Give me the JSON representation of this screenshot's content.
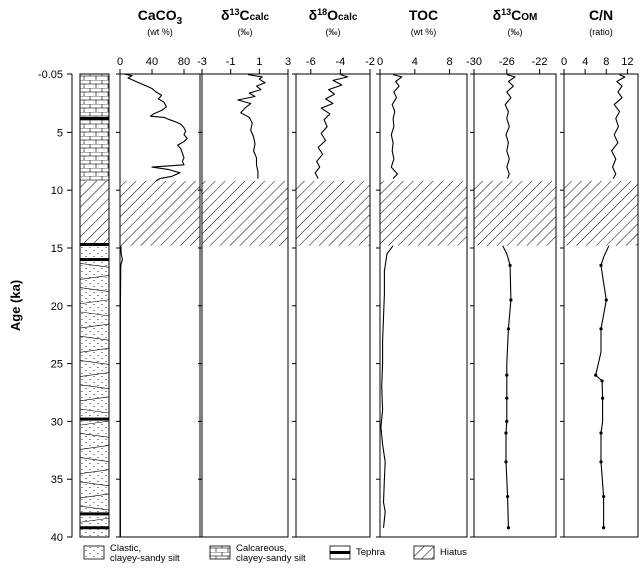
{
  "chart_data": {
    "type": "line",
    "y_axis": {
      "label": "Age (ka)",
      "range": [
        -0.05,
        40
      ],
      "ticks": [
        -0.05,
        5,
        10,
        15,
        20,
        25,
        30,
        35,
        40
      ],
      "tick_labels": [
        "-0.05",
        "5",
        "10",
        "15",
        "20",
        "25",
        "30",
        "35",
        "40"
      ],
      "inverted": true
    },
    "hiatus": [
      9.2,
      14.8
    ],
    "lithology": {
      "units": [
        {
          "type": "calcareous",
          "from": -0.05,
          "to": 9.2
        },
        {
          "type": "clastic",
          "from": 9.2,
          "to": 40
        }
      ],
      "tephra": [
        3.8,
        14.7,
        16.0,
        29.8,
        38.0,
        39.2
      ],
      "hiatus": [
        9.2,
        14.8
      ]
    },
    "panels": [
      {
        "id": "caco3",
        "title_main": "CaCO",
        "title_sub": "3",
        "title_suffix": "",
        "unit": "(wt %)",
        "xlim": [
          0,
          100
        ],
        "ticks": [
          0,
          40,
          80
        ],
        "tick_labels": [
          "0",
          "40",
          "80"
        ],
        "series": [
          {
            "segment": "upper",
            "points": [
              [
                5,
                -0.05
              ],
              [
                15,
                0.1
              ],
              [
                10,
                0.3
              ],
              [
                20,
                0.6
              ],
              [
                30,
                0.9
              ],
              [
                40,
                1.2
              ],
              [
                45,
                1.5
              ],
              [
                52,
                1.8
              ],
              [
                48,
                2.1
              ],
              [
                55,
                2.4
              ],
              [
                58,
                2.8
              ],
              [
                52,
                3.1
              ],
              [
                42,
                3.4
              ],
              [
                38,
                3.6
              ],
              [
                55,
                3.7
              ],
              [
                62,
                3.9
              ],
              [
                70,
                4.1
              ],
              [
                76,
                4.3
              ],
              [
                80,
                4.6
              ],
              [
                82,
                4.9
              ],
              [
                80,
                5.2
              ],
              [
                84,
                5.5
              ],
              [
                80,
                5.8
              ],
              [
                72,
                6.1
              ],
              [
                76,
                6.4
              ],
              [
                78,
                6.8
              ],
              [
                80,
                7.2
              ],
              [
                78,
                7.5
              ],
              [
                80,
                7.8
              ],
              [
                40,
                8.0
              ],
              [
                60,
                8.2
              ],
              [
                75,
                8.5
              ],
              [
                65,
                8.8
              ],
              [
                50,
                9.0
              ],
              [
                45,
                9.2
              ]
            ]
          },
          {
            "segment": "lower",
            "points": [
              [
                1,
                14.8
              ],
              [
                1.5,
                15.5
              ],
              [
                3,
                16.0
              ],
              [
                1,
                16.5
              ],
              [
                0.5,
                20
              ],
              [
                0.5,
                25
              ],
              [
                0.5,
                30
              ],
              [
                0.5,
                35
              ],
              [
                0.5,
                40
              ]
            ]
          }
        ]
      },
      {
        "id": "d13c_calc",
        "title_main": "δ",
        "title_sup": "13",
        "title_rest": "C",
        "title_sub": "calc",
        "unit": "(‰)",
        "xlim": [
          -3,
          3
        ],
        "ticks": [
          -3,
          -1,
          1,
          3
        ],
        "tick_labels": [
          "-3",
          "-1",
          "1",
          "3"
        ],
        "series": [
          {
            "segment": "upper",
            "points": [
              [
                0.2,
                0.0
              ],
              [
                1.2,
                0.2
              ],
              [
                1.0,
                0.4
              ],
              [
                1.4,
                0.7
              ],
              [
                0.8,
                1.0
              ],
              [
                1.1,
                1.3
              ],
              [
                0.3,
                1.6
              ],
              [
                0.7,
                1.9
              ],
              [
                -0.5,
                2.2
              ],
              [
                0.4,
                2.5
              ],
              [
                0.0,
                2.9
              ],
              [
                -0.3,
                3.3
              ],
              [
                0.3,
                3.7
              ],
              [
                0.5,
                4.2
              ],
              [
                0.4,
                4.8
              ],
              [
                0.6,
                5.4
              ],
              [
                0.7,
                6.0
              ],
              [
                0.6,
                6.6
              ],
              [
                0.8,
                7.2
              ],
              [
                0.8,
                7.8
              ],
              [
                0.9,
                8.4
              ],
              [
                0.9,
                9.0
              ]
            ]
          }
        ]
      },
      {
        "id": "d18o_calc",
        "title_main": "δ",
        "title_sup": "18",
        "title_rest": "O",
        "title_sub": "calc",
        "unit": "(‰)",
        "xlim": [
          -7,
          -2
        ],
        "ticks": [
          -6,
          -4,
          -2
        ],
        "tick_labels": [
          "-6",
          "-4",
          "-2"
        ],
        "series": [
          {
            "segment": "upper",
            "points": [
              [
                -4.0,
                0.0
              ],
              [
                -3.5,
                0.2
              ],
              [
                -4.5,
                0.5
              ],
              [
                -3.9,
                0.9
              ],
              [
                -4.8,
                1.3
              ],
              [
                -4.4,
                1.7
              ],
              [
                -5.0,
                2.1
              ],
              [
                -4.5,
                2.5
              ],
              [
                -5.3,
                2.9
              ],
              [
                -4.7,
                3.4
              ],
              [
                -5.1,
                3.9
              ],
              [
                -4.9,
                4.5
              ],
              [
                -5.3,
                5.1
              ],
              [
                -5.0,
                5.7
              ],
              [
                -5.5,
                6.3
              ],
              [
                -5.2,
                6.9
              ],
              [
                -5.6,
                7.5
              ],
              [
                -5.4,
                8.0
              ],
              [
                -5.7,
                8.5
              ],
              [
                -5.5,
                9.0
              ]
            ]
          }
        ]
      },
      {
        "id": "toc",
        "title_main": "TOC",
        "unit": "(wt %)",
        "xlim": [
          0,
          10
        ],
        "ticks": [
          0,
          4,
          8
        ],
        "tick_labels": [
          "0",
          "4",
          "8"
        ],
        "series": [
          {
            "segment": "upper",
            "points": [
              [
                1.5,
                0.0
              ],
              [
                2.5,
                0.2
              ],
              [
                1.8,
                0.6
              ],
              [
                2.2,
                1.0
              ],
              [
                1.6,
                1.5
              ],
              [
                1.9,
                2.0
              ],
              [
                1.4,
                2.6
              ],
              [
                1.7,
                3.2
              ],
              [
                1.5,
                3.8
              ],
              [
                1.6,
                4.5
              ],
              [
                1.3,
                5.2
              ],
              [
                1.5,
                5.9
              ],
              [
                1.4,
                6.6
              ],
              [
                1.6,
                7.3
              ],
              [
                1.3,
                8.0
              ],
              [
                2.0,
                8.6
              ],
              [
                1.5,
                9.0
              ]
            ]
          },
          {
            "segment": "lower",
            "points": [
              [
                1.5,
                14.8
              ],
              [
                0.8,
                15.5
              ],
              [
                0.5,
                17
              ],
              [
                0.5,
                19
              ],
              [
                0.4,
                21
              ],
              [
                0.3,
                23
              ],
              [
                0.3,
                25
              ],
              [
                0.2,
                27
              ],
              [
                0.3,
                29
              ],
              [
                0.1,
                30.5
              ],
              [
                0.3,
                32
              ],
              [
                0.6,
                33.5
              ],
              [
                0.5,
                35
              ],
              [
                0.4,
                37
              ],
              [
                0.6,
                37.8
              ],
              [
                0.5,
                38.5
              ],
              [
                0.4,
                39.2
              ]
            ]
          }
        ]
      },
      {
        "id": "d13c_om",
        "title_main": "δ",
        "title_sup": "13",
        "title_rest": "C",
        "title_sub": "OM",
        "unit": "(‰)",
        "xlim": [
          -30,
          -20
        ],
        "ticks": [
          -30,
          -26,
          -22
        ],
        "tick_labels": [
          "-30",
          "-26",
          "-22"
        ],
        "series": [
          {
            "segment": "upper",
            "points": [
              [
                -26.0,
                0.0
              ],
              [
                -25.0,
                0.2
              ],
              [
                -25.8,
                0.6
              ],
              [
                -25.2,
                1.0
              ],
              [
                -26.0,
                1.5
              ],
              [
                -25.5,
                2.0
              ],
              [
                -26.2,
                2.6
              ],
              [
                -25.8,
                3.2
              ],
              [
                -26.0,
                3.8
              ],
              [
                -25.7,
                4.5
              ],
              [
                -26.1,
                5.2
              ],
              [
                -25.8,
                5.9
              ],
              [
                -26.0,
                6.6
              ],
              [
                -25.7,
                7.3
              ],
              [
                -26.0,
                8.0
              ],
              [
                -25.7,
                8.6
              ],
              [
                -25.9,
                9.0
              ]
            ]
          },
          {
            "segment": "lower",
            "points": [
              [
                -26.5,
                14.8
              ],
              [
                -26.0,
                15.5
              ],
              [
                -25.6,
                16.5
              ],
              [
                -25.5,
                19.5
              ],
              [
                -25.8,
                22
              ],
              [
                -26.0,
                25
              ],
              [
                -26.0,
                26
              ],
              [
                -26.0,
                28
              ],
              [
                -26.0,
                30
              ],
              [
                -26.1,
                31
              ],
              [
                -26.1,
                33.5
              ],
              [
                -25.9,
                36.5
              ],
              [
                -25.8,
                39.2
              ]
            ]
          }
        ],
        "marker_points": [
          [
            -25.6,
            16.5
          ],
          [
            -25.5,
            19.5
          ],
          [
            -25.8,
            22
          ],
          [
            -26.0,
            26
          ],
          [
            -26.0,
            28
          ],
          [
            -26.0,
            30
          ],
          [
            -26.1,
            31
          ],
          [
            -26.1,
            33.5
          ],
          [
            -25.9,
            36.5
          ],
          [
            -25.8,
            39.2
          ]
        ]
      },
      {
        "id": "cn",
        "title_main": "C/N",
        "unit": "(ratio)",
        "xlim": [
          0,
          14
        ],
        "ticks": [
          0,
          4,
          8,
          12
        ],
        "tick_labels": [
          "0",
          "4",
          "8",
          "12"
        ],
        "series": [
          {
            "segment": "upper",
            "points": [
              [
                10.5,
                0.0
              ],
              [
                11.5,
                0.2
              ],
              [
                10.0,
                0.6
              ],
              [
                11.0,
                1.0
              ],
              [
                10.2,
                1.5
              ],
              [
                11.0,
                2.0
              ],
              [
                9.5,
                2.6
              ],
              [
                10.5,
                3.2
              ],
              [
                9.8,
                3.8
              ],
              [
                10.3,
                4.5
              ],
              [
                9.5,
                5.2
              ],
              [
                10.2,
                5.9
              ],
              [
                9.0,
                6.6
              ],
              [
                9.8,
                7.3
              ],
              [
                9.2,
                8.0
              ],
              [
                9.8,
                8.6
              ],
              [
                9.3,
                9.0
              ]
            ]
          },
          {
            "segment": "lower",
            "points": [
              [
                8.5,
                14.8
              ],
              [
                7.5,
                15.8
              ],
              [
                7.0,
                16.5
              ],
              [
                7.5,
                18
              ],
              [
                8.0,
                19.5
              ],
              [
                7.0,
                22
              ],
              [
                7.0,
                24
              ],
              [
                6.0,
                26
              ],
              [
                7.2,
                26.5
              ],
              [
                7.3,
                28
              ],
              [
                7.3,
                30
              ],
              [
                7.0,
                31
              ],
              [
                7.0,
                33.5
              ],
              [
                7.5,
                36.5
              ],
              [
                7.5,
                39.2
              ]
            ]
          }
        ],
        "marker_points": [
          [
            7.0,
            16.5
          ],
          [
            8.0,
            19.5
          ],
          [
            7.0,
            22
          ],
          [
            6.0,
            26
          ],
          [
            7.2,
            26.5
          ],
          [
            7.3,
            28
          ],
          [
            7.0,
            31
          ],
          [
            7.0,
            33.5
          ],
          [
            7.5,
            36.5
          ],
          [
            7.5,
            39.2
          ]
        ]
      }
    ],
    "legend": {
      "placement": "bottom",
      "items": [
        {
          "pattern": "clastic",
          "text": "Clastic,\nclayey-sandy silt"
        },
        {
          "pattern": "calcareous",
          "text": "Calcareous,\nclayey-sandy silt"
        },
        {
          "pattern": "tephra",
          "text": "Tephra"
        },
        {
          "pattern": "hiatus",
          "text": "Hiatus"
        }
      ]
    },
    "colors": {
      "line": "#000000",
      "axis": "#000000",
      "hiatus_fill": "#ffffff"
    }
  }
}
